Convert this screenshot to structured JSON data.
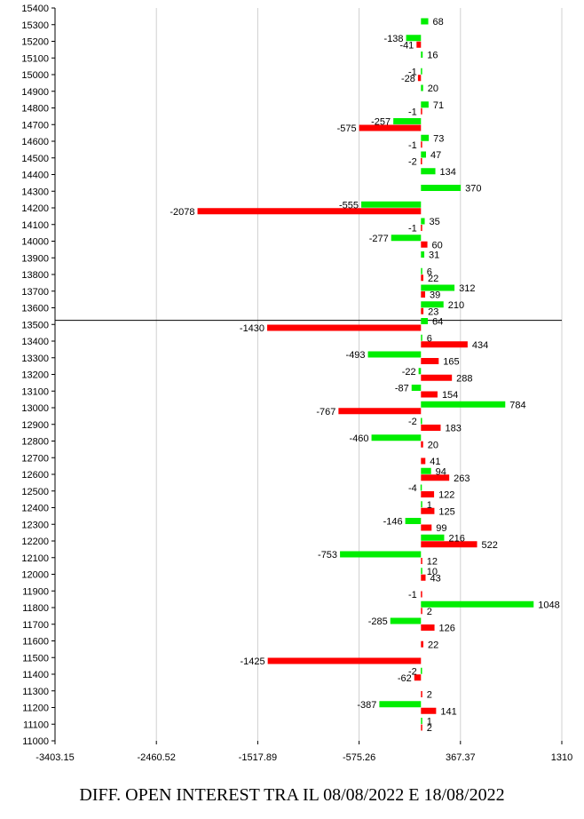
{
  "chart_data": {
    "type": "bar",
    "orientation": "horizontal",
    "title": "DIFF. OPEN INTEREST TRA IL 08/08/2022 E 18/08/2022",
    "xlim": [
      -3403.15,
      1310
    ],
    "xticks": [
      "-3403.15",
      "-2460.52",
      "-1517.89",
      "-575.26",
      "367.37",
      "1310"
    ],
    "ylim": [
      11000,
      15400
    ],
    "reference_level": 13525,
    "grid": "vertical",
    "series": [
      {
        "color": "#00ee00",
        "offset": -0.2,
        "points": [
          {
            "strike": 15300,
            "value": 68
          },
          {
            "strike": 15200,
            "value": -138
          },
          {
            "strike": 15100,
            "value": 16
          },
          {
            "strike": 15000,
            "value": -1
          },
          {
            "strike": 14900,
            "value": 20
          },
          {
            "strike": 14800,
            "value": 71
          },
          {
            "strike": 14700,
            "value": -257
          },
          {
            "strike": 14600,
            "value": 73
          },
          {
            "strike": 14500,
            "value": 47
          },
          {
            "strike": 14400,
            "value": 134
          },
          {
            "strike": 14300,
            "value": 370
          },
          {
            "strike": 14200,
            "value": -555
          },
          {
            "strike": 14100,
            "value": 35
          },
          {
            "strike": 14000,
            "value": -277
          },
          {
            "strike": 13900,
            "value": 31
          },
          {
            "strike": 13800,
            "value": 6
          },
          {
            "strike": 13700,
            "value": 312
          },
          {
            "strike": 13600,
            "value": 210
          },
          {
            "strike": 13500,
            "value": 64
          },
          {
            "strike": 13400,
            "value": 6
          },
          {
            "strike": 13300,
            "value": -493
          },
          {
            "strike": 13200,
            "value": -22
          },
          {
            "strike": 13100,
            "value": -87
          },
          {
            "strike": 13000,
            "value": 784
          },
          {
            "strike": 12900,
            "value": -2
          },
          {
            "strike": 12800,
            "value": -460
          },
          {
            "strike": 12600,
            "value": 94
          },
          {
            "strike": 12500,
            "value": -4
          },
          {
            "strike": 12400,
            "value": 1
          },
          {
            "strike": 12300,
            "value": -146
          },
          {
            "strike": 12200,
            "value": 216
          },
          {
            "strike": 12100,
            "value": -753
          },
          {
            "strike": 12000,
            "value": 10
          },
          {
            "strike": 11800,
            "value": 1048
          },
          {
            "strike": 11700,
            "value": -285
          },
          {
            "strike": 11400,
            "value": -2
          },
          {
            "strike": 11200,
            "value": -387
          },
          {
            "strike": 11100,
            "value": 1
          }
        ]
      },
      {
        "color": "#ff0000",
        "offset": 0.2,
        "points": [
          {
            "strike": 15200,
            "value": -41
          },
          {
            "strike": 15000,
            "value": -28
          },
          {
            "strike": 14800,
            "value": -1
          },
          {
            "strike": 14700,
            "value": -575
          },
          {
            "strike": 14600,
            "value": -1
          },
          {
            "strike": 14500,
            "value": -2
          },
          {
            "strike": 14200,
            "value": -2078
          },
          {
            "strike": 14100,
            "value": -1
          },
          {
            "strike": 14000,
            "value": 60
          },
          {
            "strike": 13800,
            "value": 22
          },
          {
            "strike": 13700,
            "value": 39
          },
          {
            "strike": 13600,
            "value": 23
          },
          {
            "strike": 13500,
            "value": -1430
          },
          {
            "strike": 13400,
            "value": 434
          },
          {
            "strike": 13300,
            "value": 165
          },
          {
            "strike": 13200,
            "value": 288
          },
          {
            "strike": 13100,
            "value": 154
          },
          {
            "strike": 13000,
            "value": -767
          },
          {
            "strike": 12900,
            "value": 183
          },
          {
            "strike": 12800,
            "value": 20
          },
          {
            "strike": 12700,
            "value": 41
          },
          {
            "strike": 12600,
            "value": 263
          },
          {
            "strike": 12500,
            "value": 122
          },
          {
            "strike": 12400,
            "value": 125
          },
          {
            "strike": 12300,
            "value": 99
          },
          {
            "strike": 12200,
            "value": 522
          },
          {
            "strike": 12100,
            "value": 12
          },
          {
            "strike": 12000,
            "value": 43
          },
          {
            "strike": 11900,
            "value": -1
          },
          {
            "strike": 11800,
            "value": 2
          },
          {
            "strike": 11700,
            "value": 126
          },
          {
            "strike": 11600,
            "value": 22
          },
          {
            "strike": 11500,
            "value": -1425
          },
          {
            "strike": 11400,
            "value": -62
          },
          {
            "strike": 11300,
            "value": 2
          },
          {
            "strike": 11200,
            "value": 141
          },
          {
            "strike": 11100,
            "value": 2
          }
        ]
      }
    ]
  }
}
